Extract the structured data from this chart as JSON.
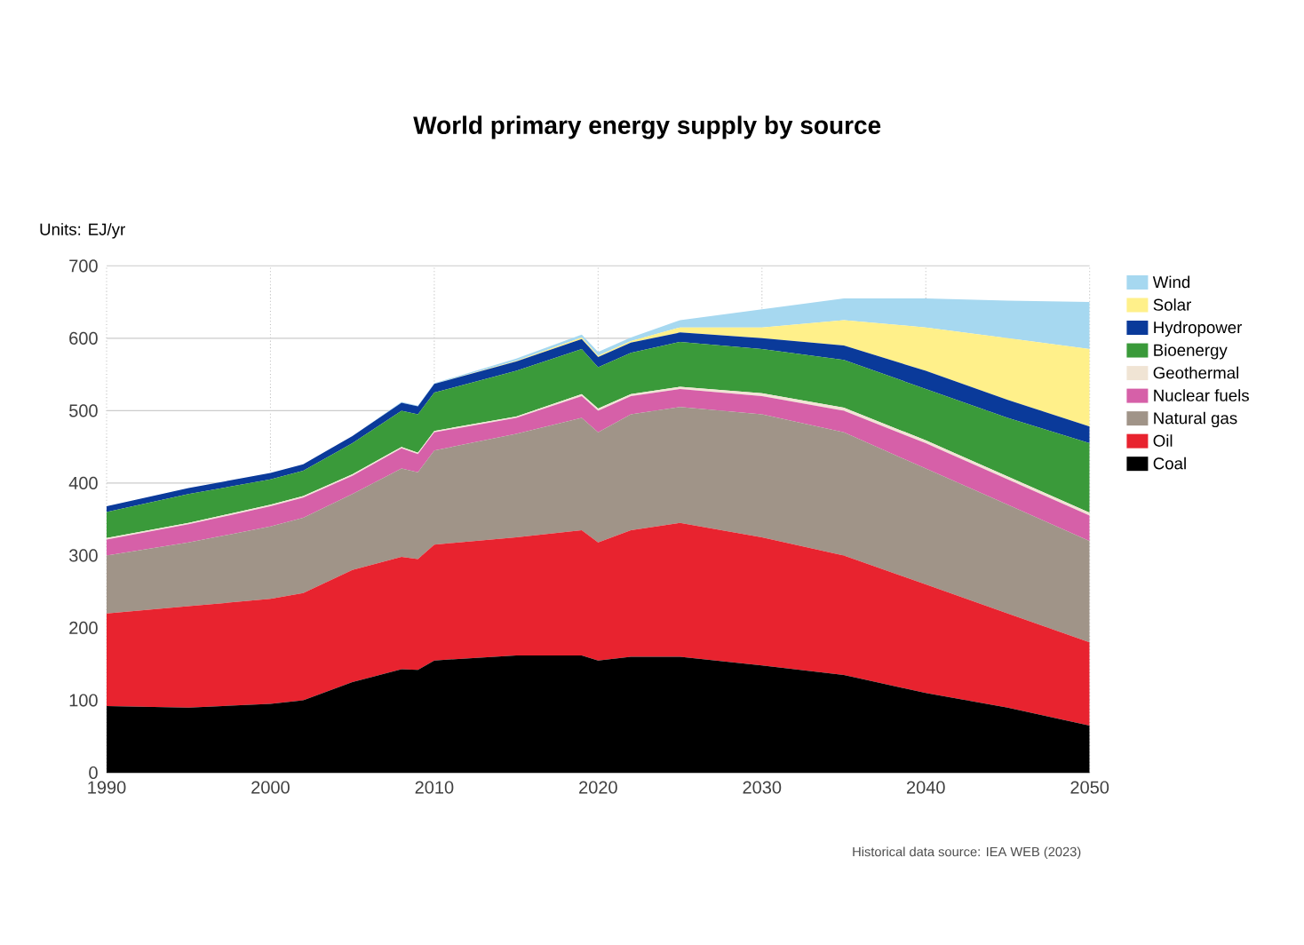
{
  "chart_data": {
    "type": "area",
    "stacked": true,
    "title": "World primary energy supply by source",
    "ylabel": "Units: EJ/yr",
    "annotations": [
      "Historical data source: IEA WEB (2023)"
    ],
    "x": [
      1990,
      1995,
      2000,
      2002,
      2005,
      2008,
      2009,
      2010,
      2015,
      2019,
      2020,
      2022,
      2025,
      2030,
      2035,
      2040,
      2045,
      2050
    ],
    "series": [
      {
        "name": "Coal",
        "color": "#000000",
        "values": [
          92,
          90,
          95,
          100,
          125,
          143,
          142,
          155,
          162,
          162,
          155,
          160,
          160,
          148,
          135,
          110,
          90,
          65
        ]
      },
      {
        "name": "Oil",
        "color": "#e8232f",
        "values": [
          128,
          140,
          145,
          148,
          155,
          155,
          153,
          160,
          163,
          173,
          163,
          175,
          185,
          177,
          165,
          150,
          130,
          115
        ]
      },
      {
        "name": "Natural gas",
        "color": "#a09488",
        "values": [
          80,
          88,
          100,
          104,
          105,
          122,
          120,
          130,
          143,
          155,
          152,
          160,
          160,
          170,
          170,
          160,
          150,
          140
        ]
      },
      {
        "name": "Nuclear fuels",
        "color": "#d660a8",
        "values": [
          22,
          25,
          28,
          28,
          25,
          28,
          25,
          25,
          22,
          30,
          30,
          25,
          25,
          25,
          30,
          35,
          35,
          35
        ]
      },
      {
        "name": "Geothermal",
        "color": "#f0e4d4",
        "values": [
          2,
          2,
          2,
          2,
          2,
          2,
          2,
          2,
          2,
          3,
          3,
          3,
          3,
          4,
          4,
          4,
          4,
          4
        ]
      },
      {
        "name": "Bioenergy",
        "color": "#3a9a3a",
        "values": [
          36,
          40,
          35,
          35,
          43,
          50,
          53,
          53,
          63,
          62,
          57,
          57,
          62,
          61,
          66,
          71,
          81,
          96
        ]
      },
      {
        "name": "Hydropower",
        "color": "#0a3a9a",
        "values": [
          8,
          8,
          9,
          9,
          10,
          11,
          11,
          12,
          13,
          14,
          14,
          14,
          13,
          15,
          20,
          25,
          25,
          23
        ]
      },
      {
        "name": "Solar",
        "color": "#fff08a",
        "values": [
          0,
          0,
          0,
          0,
          0,
          0,
          0,
          0,
          1,
          2,
          2,
          2,
          7,
          15,
          35,
          60,
          85,
          107
        ]
      },
      {
        "name": "Wind",
        "color": "#a6d8f0",
        "values": [
          0,
          0,
          0,
          0,
          0,
          1,
          1,
          1,
          3,
          4,
          5,
          5,
          10,
          25,
          30,
          40,
          52,
          65
        ]
      }
    ],
    "xlim": [
      1990,
      2050
    ],
    "xticks": [
      1990,
      2000,
      2010,
      2020,
      2030,
      2040,
      2050
    ],
    "ylim": [
      0,
      700
    ],
    "yticks": [
      0,
      100,
      200,
      300,
      400,
      500,
      600,
      700
    ],
    "grid": true,
    "legend": "top right"
  }
}
